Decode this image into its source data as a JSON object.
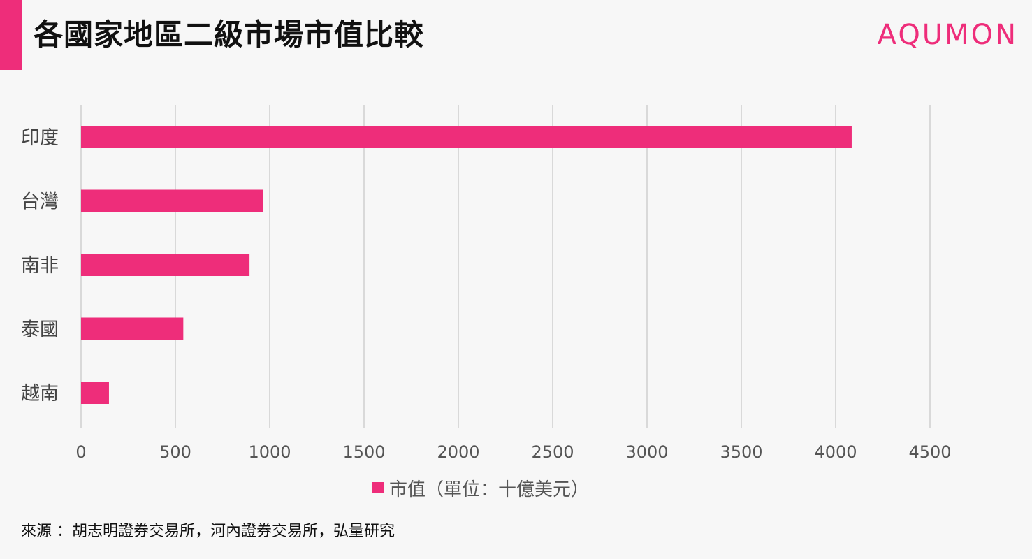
{
  "header": {
    "title": "各國家地區二級市場市值比較",
    "logo": "AQUMON"
  },
  "footer": {
    "source": "來源 ：胡志明證券交易所，河內證券交易所，弘量研究"
  },
  "colors": {
    "accent": "#ee2d7a",
    "grid": "#d9d9d9",
    "tick_text": "#555555"
  },
  "chart_data": {
    "type": "bar",
    "orientation": "horizontal",
    "categories": [
      "印度",
      "台灣",
      "南非",
      "泰國",
      "越南"
    ],
    "series": [
      {
        "name": "市值（單位：十億美元）",
        "values": [
          4085,
          965,
          893,
          542,
          148
        ]
      }
    ],
    "x_ticks": [
      "0",
      "500",
      "1000",
      "1500",
      "2000",
      "2500",
      "3000",
      "3500",
      "4000",
      "4500"
    ],
    "xlim": [
      0,
      4500
    ],
    "grid": true,
    "legend_position": "bottom"
  }
}
